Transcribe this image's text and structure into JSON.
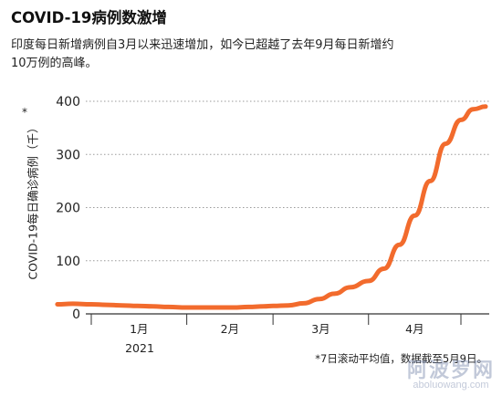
{
  "chart_data": {
    "type": "line",
    "title": "COVID-19病例数激增",
    "subtitle": "印度每日新增病例自3月以来迅速增加，如今已超越了去年9月每日新增约10万例的高峰。",
    "ylabel": "COVID-19每日确诊病例（千）",
    "ylabel_marker": "*",
    "ylim": [
      0,
      420
    ],
    "yticks": [
      "0",
      "100",
      "200",
      "300",
      "400"
    ],
    "x_tick_labels": [
      "1月",
      "2月",
      "3月",
      "4月"
    ],
    "x_year_label": "2021",
    "grid": "horizontal-dotted",
    "legend": "none",
    "line_color": "#f26b2d",
    "footnote": "*7日滚动平均值，数据截至5月9日。",
    "series": [
      {
        "x": [
          "2020-12-21",
          "2020-12-26",
          "2021-01-01",
          "2021-01-06",
          "2021-01-11",
          "2021-01-16",
          "2021-01-21",
          "2021-01-26",
          "2021-02-01",
          "2021-02-06",
          "2021-02-11",
          "2021-02-16",
          "2021-02-21",
          "2021-02-26",
          "2021-03-01",
          "2021-03-06",
          "2021-03-11",
          "2021-03-16",
          "2021-03-21",
          "2021-03-26",
          "2021-04-01",
          "2021-04-06",
          "2021-04-11",
          "2021-04-16",
          "2021-04-21",
          "2021-04-26",
          "2021-05-01",
          "2021-05-05",
          "2021-05-09"
        ],
        "values": [
          18,
          19,
          18,
          17,
          16,
          15,
          14,
          13,
          12,
          12,
          12,
          12,
          13,
          14,
          15,
          16,
          20,
          28,
          38,
          50,
          62,
          85,
          130,
          185,
          250,
          320,
          365,
          385,
          390
        ]
      }
    ]
  },
  "watermark": {
    "main": "阿波罗网",
    "sub": "aboluowang.com"
  }
}
